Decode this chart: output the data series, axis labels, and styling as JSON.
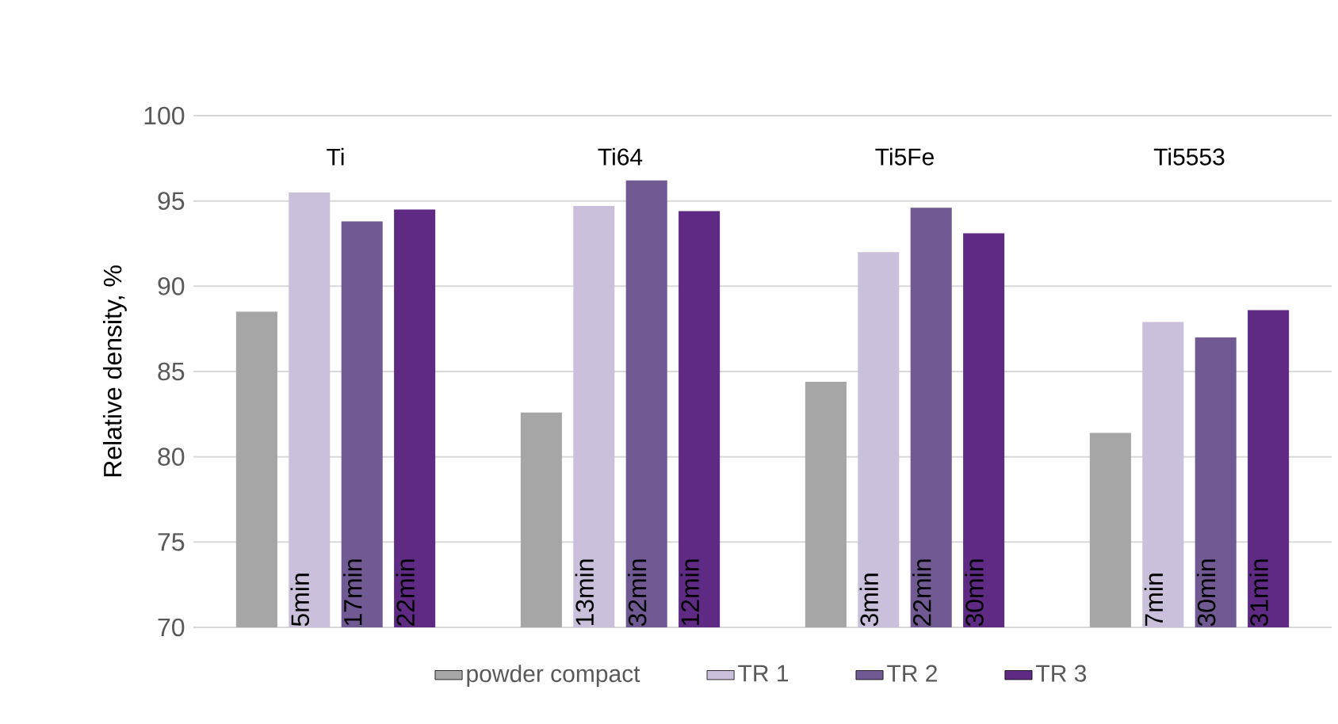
{
  "chart_data": {
    "type": "bar",
    "ylabel": "Relative density, %",
    "categories": [
      "Ti",
      "Ti64",
      "Ti5Fe",
      "Ti5553"
    ],
    "ylim": [
      70,
      100
    ],
    "yticks": [
      70,
      75,
      80,
      85,
      90,
      95,
      100
    ],
    "grid": "y",
    "legend": "bottom",
    "series": [
      {
        "name": "powder compact",
        "color": "#a6a6a6",
        "values": [
          88.5,
          82.6,
          84.4,
          81.4
        ]
      },
      {
        "name": "TR 1",
        "color": "#cbc0dc",
        "values": [
          95.5,
          94.7,
          92.0,
          87.9
        ]
      },
      {
        "name": "TR 2",
        "color": "#715a93",
        "values": [
          93.8,
          96.2,
          94.6,
          87.0
        ]
      },
      {
        "name": "TR 3",
        "color": "#5e2a84",
        "values": [
          94.5,
          94.4,
          93.1,
          88.6
        ]
      }
    ],
    "annotations": [
      "5min",
      "13min",
      "3min",
      "7min",
      "17min",
      "32min",
      "22min",
      "30min",
      "22min",
      "12min",
      "30min",
      "31min"
    ]
  }
}
